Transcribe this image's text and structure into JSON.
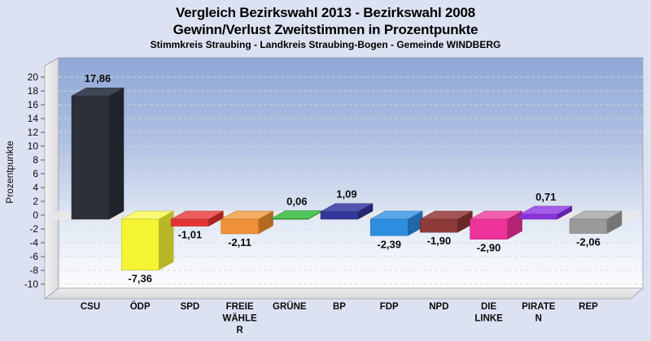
{
  "header": {
    "title_line1": "Vergleich Bezirkswahl 2013 - Bezirkswahl 2008",
    "title_line2": "Gewinn/Verlust Zweitstimmen in Prozentpunkte",
    "footnote": "Stimmkreis Straubing - Landkreis Straubing-Bogen - Gemeinde WINDBERG"
  },
  "chart_data": {
    "type": "bar",
    "projection": "3d",
    "title": "Vergleich Bezirkswahl 2013 - Bezirkswahl 2008",
    "subtitle": "Gewinn/Verlust Zweitstimmen in Prozentpunkte",
    "footnote": "Stimmkreis Straubing - Landkreis Straubing-Bogen - Gemeinde WINDBERG",
    "xlabel": "",
    "ylabel": "Prozentpunkte",
    "ylim": [
      -10,
      22
    ],
    "yticks": [
      20,
      18,
      16,
      14,
      12,
      10,
      8,
      6,
      4,
      2,
      0,
      -2,
      -4,
      -6,
      -8,
      -10
    ],
    "grid": "horizontal-dashed",
    "legend": "none",
    "categories": [
      "CSU",
      "ÖDP",
      "SPD",
      "FREIE WÄHLER",
      "GRÜNE",
      "BP",
      "FDP",
      "NPD",
      "DIE LINKE",
      "PIRATEN",
      "REP"
    ],
    "values": [
      17.86,
      -7.36,
      -1.01,
      -2.11,
      0.06,
      1.09,
      -2.39,
      -1.9,
      -2.9,
      0.71,
      -2.06
    ],
    "bars": [
      {
        "label": "CSU",
        "label_lines": [
          "CSU"
        ],
        "value": 17.86,
        "value_label": "17,86",
        "color": "#2b303a",
        "color_top": "#404653",
        "color_side": "#1f232b"
      },
      {
        "label": "ÖDP",
        "label_lines": [
          "ÖDP"
        ],
        "value": -7.36,
        "value_label": "-7,36",
        "color": "#f4f433",
        "color_top": "#f9f972",
        "color_side": "#b7b728"
      },
      {
        "label": "SPD",
        "label_lines": [
          "SPD"
        ],
        "value": -1.01,
        "value_label": "-1,01",
        "color": "#e53434",
        "color_top": "#ee5e5e",
        "color_side": "#ab2222"
      },
      {
        "label": "FREIE WÄHLER",
        "label_lines": [
          "FREIE",
          "WÄHLE",
          "R"
        ],
        "value": -2.11,
        "value_label": "-2,11",
        "color": "#ef9136",
        "color_top": "#f4ae63",
        "color_side": "#b56a20"
      },
      {
        "label": "GRÜNE",
        "label_lines": [
          "GRÜNE"
        ],
        "value": 0.06,
        "value_label": "0,06",
        "color": "#2db334",
        "color_top": "#53c65a",
        "color_side": "#1e7d24"
      },
      {
        "label": "BP",
        "label_lines": [
          "BP"
        ],
        "value": 1.09,
        "value_label": "1,09",
        "color": "#34379a",
        "color_top": "#5154ae",
        "color_side": "#242670"
      },
      {
        "label": "FDP",
        "label_lines": [
          "FDP"
        ],
        "value": -2.39,
        "value_label": "-2,39",
        "color": "#2e8fe0",
        "color_top": "#5aa8ea",
        "color_side": "#2068a8"
      },
      {
        "label": "NPD",
        "label_lines": [
          "NPD"
        ],
        "value": -1.9,
        "value_label": "-1,90",
        "color": "#8e3a3a",
        "color_top": "#a45555",
        "color_side": "#6a2727"
      },
      {
        "label": "DIE LINKE",
        "label_lines": [
          "DIE",
          "LINKE"
        ],
        "value": -2.9,
        "value_label": "-2,90",
        "color": "#ee339a",
        "color_top": "#f35fb0",
        "color_side": "#b42272"
      },
      {
        "label": "PIRATEN",
        "label_lines": [
          "PIRATE",
          "N"
        ],
        "value": 0.71,
        "value_label": "0,71",
        "color": "#8a32dc",
        "color_top": "#a55ce8",
        "color_side": "#6522a8"
      },
      {
        "label": "REP",
        "label_lines": [
          "REP"
        ],
        "value": -2.06,
        "value_label": "-2,06",
        "color": "#9a9a9a",
        "color_top": "#b6b6b6",
        "color_side": "#757575"
      }
    ]
  },
  "colors": {
    "page_background": "#dce2f2",
    "plot_gradient_top": "#8fa8d6",
    "plot_gradient_bottom": "#fdfdfe",
    "wall": "#e9e9ec",
    "floor": "#e3e3e5",
    "zero_band": "#e8e8e8",
    "gridline": "#d7d9d3",
    "frame_stroke": "#9aa0a8",
    "text": "#0a0a0a"
  }
}
